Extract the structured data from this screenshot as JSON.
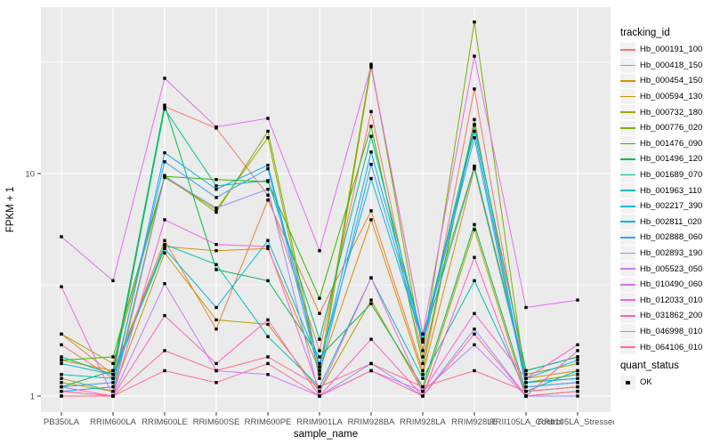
{
  "chart_data": {
    "type": "line",
    "title": "",
    "xlabel": "sample_name",
    "ylabel": "FPKM + 1",
    "y_scale": "log10",
    "ylim": [
      1,
      55
    ],
    "y_major_ticks": [
      1,
      10
    ],
    "y_tick_labels": [
      "1",
      "10"
    ],
    "y_minor_ticks": [
      3.1623,
      31.623
    ],
    "grid": true,
    "grid_color": "#FFFFFF",
    "panel_bg": "#EBEBEB",
    "axis_text_color": "#4D4D4D",
    "point_shape": "square",
    "point_color": "#000000",
    "legend_position": "right",
    "legend_tracking_title": "tracking_id",
    "legend_quant_title": "quant_status",
    "quant_items": [
      {
        "label": "OK"
      }
    ],
    "categories": [
      "PB350LA",
      "RRIM600LA",
      "RRIM600LE",
      "RRIM600SE",
      "RRIM600PE",
      "RRIM901LA",
      "RRIM928BA",
      "RRIM928LA",
      "RRIM928LE",
      "RRII105LA_Control",
      "RRII105LA_Stressed"
    ],
    "series": [
      {
        "name": "Hb_000191_100",
        "color": "#F8766D",
        "values": [
          1.7,
          1.2,
          20.0,
          16.0,
          8.0,
          1.6,
          19.0,
          1.5,
          24.0,
          1.15,
          1.2
        ]
      },
      {
        "name": "Hb_000418_150",
        "color": "#EA8331",
        "values": [
          1.9,
          1.25,
          5.0,
          2.0,
          7.6,
          2.35,
          6.8,
          1.3,
          17.5,
          1.1,
          1.15
        ]
      },
      {
        "name": "Hb_000454_150",
        "color": "#D89000",
        "values": [
          1.45,
          1.3,
          4.7,
          4.5,
          4.6,
          1.3,
          6.2,
          1.25,
          10.5,
          1.2,
          1.3
        ]
      },
      {
        "name": "Hb_000594_130",
        "color": "#C09B00",
        "values": [
          1.15,
          1.05,
          4.4,
          2.2,
          2.1,
          1.05,
          2.7,
          1.05,
          5.6,
          1.0,
          1.05
        ]
      },
      {
        "name": "Hb_000732_180",
        "color": "#A3A500",
        "values": [
          1.9,
          1.4,
          9.6,
          6.9,
          14.5,
          1.2,
          30.0,
          1.9,
          10.8,
          1.25,
          1.4
        ]
      },
      {
        "name": "Hb_000776_020",
        "color": "#7CAE00",
        "values": [
          1.2,
          1.05,
          9.8,
          6.7,
          15.5,
          1.3,
          31.0,
          1.6,
          48.0,
          1.15,
          1.25
        ]
      },
      {
        "name": "Hb_001476_090",
        "color": "#39B600",
        "values": [
          1.45,
          1.5,
          9.7,
          9.4,
          9.2,
          2.75,
          16.3,
          1.4,
          16.5,
          1.3,
          1.5
        ]
      },
      {
        "name": "Hb_001496_120",
        "color": "#00BB4E",
        "values": [
          1.1,
          1.3,
          20.3,
          3.7,
          3.3,
          1.5,
          2.6,
          1.1,
          5.9,
          1.05,
          1.1
        ]
      },
      {
        "name": "Hb_001689_070",
        "color": "#00C087",
        "values": [
          1.5,
          1.25,
          19.5,
          8.8,
          9.3,
          1.8,
          14.7,
          1.8,
          16.6,
          1.3,
          1.5
        ]
      },
      {
        "name": "Hb_001963_110",
        "color": "#00C0B8",
        "values": [
          1.25,
          1.2,
          4.8,
          3.9,
          1.85,
          1.1,
          3.4,
          1.2,
          3.3,
          1.05,
          1.3
        ]
      },
      {
        "name": "Hb_002217_390",
        "color": "#00BAE0",
        "values": [
          1.4,
          1.25,
          4.6,
          2.5,
          5.0,
          1.4,
          9.5,
          1.75,
          10.7,
          1.2,
          1.45
        ]
      },
      {
        "name": "Hb_002811_020",
        "color": "#00ACFC",
        "values": [
          1.05,
          1.1,
          12.4,
          8.5,
          10.9,
          1.35,
          12.5,
          1.8,
          15.5,
          1.15,
          1.2
        ]
      },
      {
        "name": "Hb_002888_060",
        "color": "#35A2FF",
        "values": [
          1.1,
          1.15,
          11.3,
          7.8,
          10.5,
          1.25,
          11.0,
          1.75,
          14.5,
          1.1,
          1.15
        ]
      },
      {
        "name": "Hb_002893_190",
        "color": "#9590FF",
        "values": [
          1.0,
          1.0,
          9.7,
          7.0,
          8.5,
          1.0,
          1.4,
          1.0,
          2.0,
          1.0,
          1.0
        ]
      },
      {
        "name": "Hb_005523_050",
        "color": "#C77CFF",
        "values": [
          1.05,
          1.0,
          3.2,
          1.3,
          1.25,
          1.0,
          1.3,
          1.05,
          1.7,
          1.0,
          1.05
        ]
      },
      {
        "name": "Hb_010490_060",
        "color": "#E76BF3",
        "values": [
          5.2,
          3.3,
          26.8,
          16.2,
          17.7,
          4.5,
          30.5,
          1.9,
          33.7,
          2.5,
          2.7
        ]
      },
      {
        "name": "Hb_012033_010",
        "color": "#FA62DB",
        "values": [
          3.1,
          1.0,
          6.2,
          4.8,
          4.7,
          1.05,
          3.4,
          1.05,
          2.35,
          1.2,
          1.7
        ]
      },
      {
        "name": "Hb_031862_200",
        "color": "#FF62BC",
        "values": [
          1.1,
          1.0,
          2.3,
          1.4,
          2.2,
          1.0,
          1.8,
          1.0,
          4.2,
          1.0,
          1.6
        ]
      },
      {
        "name": "Hb_046998_010",
        "color": "#FF6A99",
        "values": [
          1.0,
          1.0,
          1.3,
          1.15,
          1.4,
          1.0,
          1.3,
          1.0,
          1.9,
          1.0,
          1.05
        ]
      },
      {
        "name": "Hb_064106_010",
        "color": "#FF6C91",
        "values": [
          1.05,
          1.0,
          1.6,
          1.3,
          1.5,
          1.1,
          1.4,
          1.1,
          1.3,
          1.05,
          1.1
        ]
      }
    ]
  }
}
